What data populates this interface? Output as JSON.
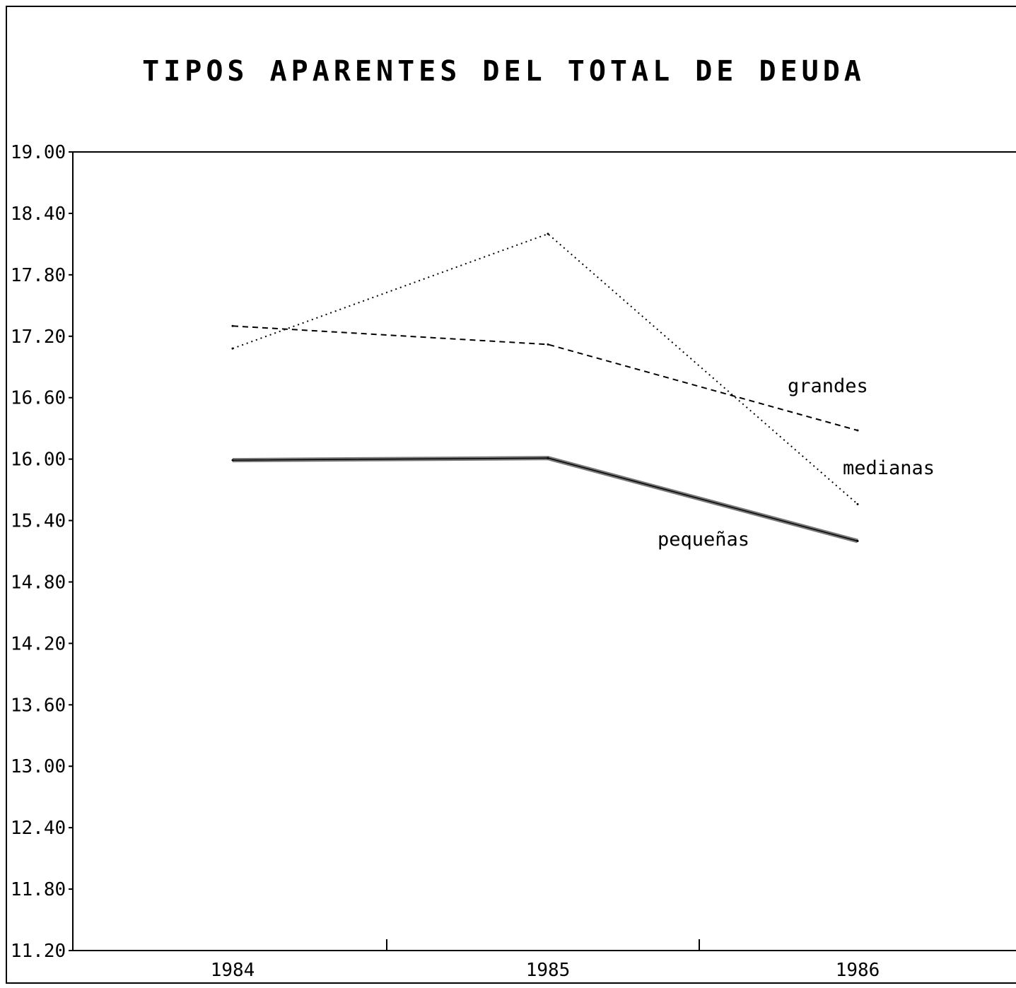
{
  "chart_data": {
    "type": "line",
    "title": "TIPOS APARENTES DEL TOTAL DE DEUDA",
    "xlabel": "",
    "ylabel": "",
    "x": [
      1984,
      1985,
      1986
    ],
    "x_tick_labels": [
      "1984",
      "1985",
      "1986"
    ],
    "ylim": [
      11.2,
      19.0
    ],
    "y_ticks": [
      19.0,
      18.4,
      17.8,
      17.2,
      16.6,
      16.0,
      15.4,
      14.8,
      14.2,
      13.6,
      13.0,
      12.4,
      11.8,
      11.2
    ],
    "y_tick_labels": [
      "19.00",
      "18.40",
      "17.80",
      "17.20",
      "16.60",
      "16.00",
      "15.40",
      "14.80",
      "14.20",
      "13.60",
      "13.00",
      "12.40",
      "11.80",
      "11.20"
    ],
    "grid": false,
    "legend": "labels placed next to the line ends",
    "series": [
      {
        "name": "grandes",
        "style": "dashed",
        "values": [
          17.3,
          17.12,
          16.28
        ]
      },
      {
        "name": "medianas",
        "style": "dotted",
        "values": [
          17.08,
          18.2,
          15.56
        ]
      },
      {
        "name": "pequeñas",
        "style": "solid-thick",
        "values": [
          15.99,
          16.01,
          15.2
        ]
      }
    ]
  }
}
